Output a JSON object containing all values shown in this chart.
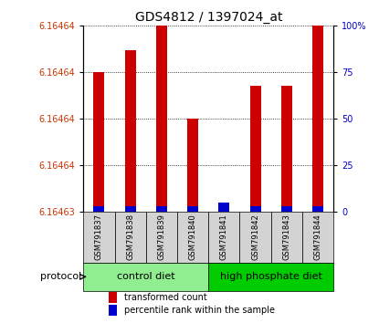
{
  "title": "GDS4812 / 1397024_at",
  "samples": [
    "GSM791837",
    "GSM791838",
    "GSM791839",
    "GSM791840",
    "GSM791841",
    "GSM791842",
    "GSM791843",
    "GSM791844"
  ],
  "red_heights_pct": [
    75,
    87,
    100,
    50,
    3,
    68,
    68,
    100
  ],
  "blue_heights_pct": [
    3,
    3,
    3,
    3,
    5,
    3,
    3,
    3
  ],
  "y_min": 6.16463,
  "y_max": 6.164645,
  "y_tick_positions_pct": [
    0,
    25,
    50,
    75,
    100
  ],
  "y_tick_labels_left": [
    "6.16463",
    "6.16464",
    "6.16464",
    "6.16464",
    "6.16464"
  ],
  "y_tick_labels_right": [
    "0",
    "25",
    "50",
    "75",
    "100%"
  ],
  "groups": [
    {
      "label": "control diet",
      "start": 0,
      "end": 4,
      "color": "#90EE90"
    },
    {
      "label": "high phosphate diet",
      "start": 4,
      "end": 8,
      "color": "#00CC00"
    }
  ],
  "protocol_label": "protocol",
  "bar_width": 0.35,
  "red_color": "#CC0000",
  "blue_color": "#0000CC",
  "tick_color_left": "#CC3300",
  "tick_color_right": "#0000CC",
  "sample_box_color": "#D3D3D3",
  "grid_color": "#000000",
  "title_fontsize": 10,
  "tick_fontsize": 7,
  "sample_fontsize": 6,
  "group_fontsize": 8,
  "legend_fontsize": 7
}
